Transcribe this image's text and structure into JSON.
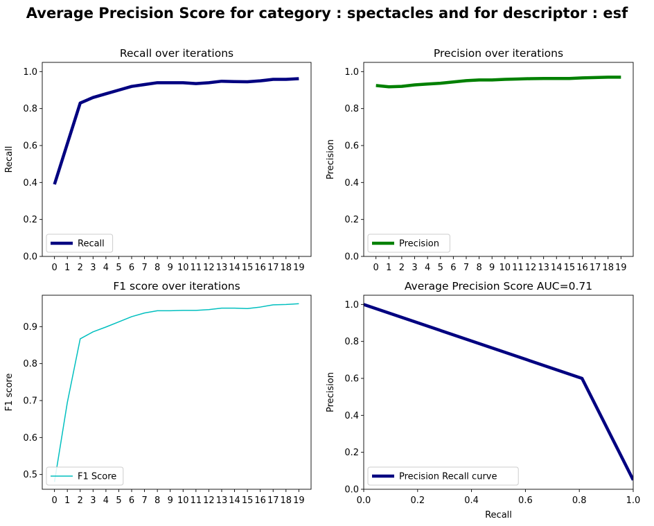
{
  "figure": {
    "suptitle": "Average Precision Score for category : spectacles and for descriptor : esf"
  },
  "chart_data": [
    {
      "type": "line",
      "title": "Recall over iterations",
      "xlabel": "",
      "ylabel": "Recall",
      "xlim": [
        -0.95,
        19.95
      ],
      "ylim": [
        0,
        1.05
      ],
      "x": [
        0,
        1,
        2,
        3,
        4,
        5,
        6,
        7,
        8,
        9,
        10,
        11,
        12,
        13,
        14,
        15,
        16,
        17,
        18,
        19
      ],
      "xticks": [
        0,
        1,
        2,
        3,
        4,
        5,
        6,
        7,
        8,
        9,
        10,
        11,
        12,
        13,
        14,
        15,
        16,
        17,
        18,
        19
      ],
      "yticks": [
        0.0,
        0.2,
        0.4,
        0.6,
        0.8,
        1.0
      ],
      "legend_position": "lower-left",
      "series": [
        {
          "name": "Recall",
          "color": "#000080",
          "linewidth": 4.5,
          "values": [
            0.39,
            0.61,
            0.83,
            0.86,
            0.88,
            0.9,
            0.92,
            0.93,
            0.94,
            0.94,
            0.94,
            0.935,
            0.94,
            0.948,
            0.946,
            0.945,
            0.95,
            0.958,
            0.958,
            0.962
          ]
        }
      ]
    },
    {
      "type": "line",
      "title": "Precision over iterations",
      "xlabel": "",
      "ylabel": "Precision",
      "xlim": [
        -0.95,
        19.95
      ],
      "ylim": [
        0,
        1.05
      ],
      "x": [
        0,
        1,
        2,
        3,
        4,
        5,
        6,
        7,
        8,
        9,
        10,
        11,
        12,
        13,
        14,
        15,
        16,
        17,
        18,
        19
      ],
      "xticks": [
        0,
        1,
        2,
        3,
        4,
        5,
        6,
        7,
        8,
        9,
        10,
        11,
        12,
        13,
        14,
        15,
        16,
        17,
        18,
        19
      ],
      "yticks": [
        0.0,
        0.2,
        0.4,
        0.6,
        0.8,
        1.0
      ],
      "legend_position": "lower-left",
      "series": [
        {
          "name": "Precision",
          "color": "#008000",
          "linewidth": 4.5,
          "values": [
            0.925,
            0.918,
            0.92,
            0.928,
            0.933,
            0.937,
            0.944,
            0.951,
            0.955,
            0.955,
            0.958,
            0.96,
            0.962,
            0.963,
            0.963,
            0.963,
            0.966,
            0.968,
            0.97,
            0.97
          ]
        }
      ]
    },
    {
      "type": "line",
      "title": "F1 score over iterations",
      "xlabel": "",
      "ylabel": "F1 score",
      "xlim": [
        -0.95,
        19.95
      ],
      "ylim": [
        0.46,
        0.985
      ],
      "x": [
        0,
        1,
        2,
        3,
        4,
        5,
        6,
        7,
        8,
        9,
        10,
        11,
        12,
        13,
        14,
        15,
        16,
        17,
        18,
        19
      ],
      "xticks": [
        0,
        1,
        2,
        3,
        4,
        5,
        6,
        7,
        8,
        9,
        10,
        11,
        12,
        13,
        14,
        15,
        16,
        17,
        18,
        19
      ],
      "yticks": [
        0.5,
        0.6,
        0.7,
        0.8,
        0.9
      ],
      "legend_position": "lower-left",
      "series": [
        {
          "name": "F1 Score",
          "color": "#00bfbf",
          "linewidth": 1.5,
          "values": [
            0.48,
            0.695,
            0.867,
            0.886,
            0.899,
            0.913,
            0.927,
            0.937,
            0.943,
            0.943,
            0.944,
            0.944,
            0.946,
            0.95,
            0.95,
            0.949,
            0.953,
            0.959,
            0.96,
            0.962
          ]
        }
      ]
    },
    {
      "type": "line",
      "title": "Average Precision Score AUC=0.71",
      "xlabel": "Recall",
      "ylabel": "Precision",
      "xlim": [
        0,
        1
      ],
      "ylim": [
        0,
        1.05
      ],
      "xticks": [
        0.0,
        0.2,
        0.4,
        0.6,
        0.8,
        1.0
      ],
      "yticks": [
        0.0,
        0.2,
        0.4,
        0.6,
        0.8,
        1.0
      ],
      "legend_position": "lower-left",
      "series": [
        {
          "name": "Precision Recall curve",
          "color": "#000080",
          "linewidth": 4.5,
          "x": [
            0.0,
            0.81,
            1.0
          ],
          "values": [
            1.0,
            0.6,
            0.05
          ]
        }
      ]
    }
  ]
}
